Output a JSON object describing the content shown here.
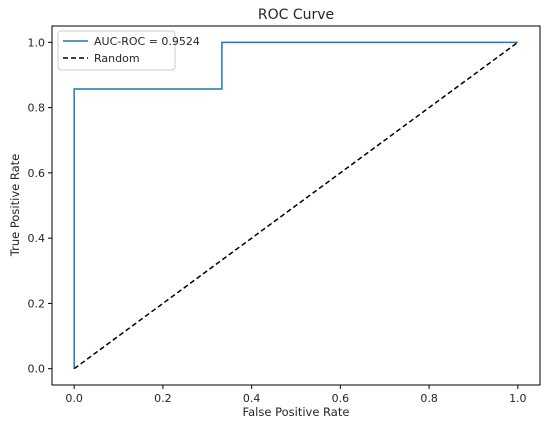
{
  "chart_data": {
    "type": "line",
    "title": "ROC Curve",
    "xlabel": "False Positive Rate",
    "ylabel": "True Positive Rate",
    "xlim": [
      -0.05,
      1.05
    ],
    "ylim": [
      -0.05,
      1.05
    ],
    "xticks": [
      0.0,
      0.2,
      0.4,
      0.6,
      0.8,
      1.0
    ],
    "yticks": [
      0.0,
      0.2,
      0.4,
      0.6,
      0.8,
      1.0
    ],
    "xtick_labels": [
      "0.0",
      "0.2",
      "0.4",
      "0.6",
      "0.8",
      "1.0"
    ],
    "ytick_labels": [
      "0.0",
      "0.2",
      "0.4",
      "0.6",
      "0.8",
      "1.0"
    ],
    "grid": false,
    "legend_position": "top-left",
    "series": [
      {
        "name": "AUC-ROC = 0.9524",
        "color": "#1f77b4",
        "style": "solid",
        "x": [
          0.0,
          0.0,
          0.333,
          0.333,
          1.0
        ],
        "y": [
          0.0,
          0.857,
          0.857,
          1.0,
          1.0
        ]
      },
      {
        "name": "Random",
        "color": "#000000",
        "style": "dashed",
        "x": [
          0.0,
          1.0
        ],
        "y": [
          0.0,
          1.0
        ]
      }
    ]
  }
}
